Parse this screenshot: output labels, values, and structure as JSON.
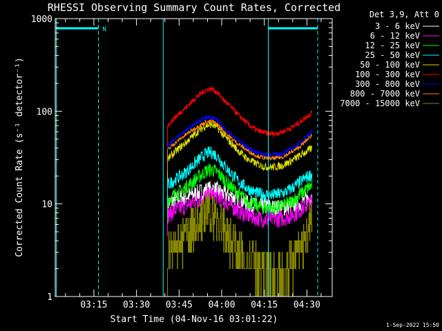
{
  "chart_data": {
    "type": "line",
    "title": "RHESSI Observing Summary Count Rates, Corrected",
    "xlabel": "Start Time (04-Nov-16 03:01:22)",
    "ylabel": "Corrected Count Rate (s⁻¹ detector⁻¹)",
    "y_scale": "log",
    "ylim": [
      1,
      1000
    ],
    "x_unit": "minutes since 03:01:22",
    "xlim": [
      0,
      97.5
    ],
    "x_ticks": [
      {
        "label": "03:15",
        "value": 13.6
      },
      {
        "label": "03:30",
        "value": 28.6
      },
      {
        "label": "03:45",
        "value": 43.6
      },
      {
        "label": "04:00",
        "value": 58.6
      },
      {
        "label": "04:15",
        "value": 73.6
      },
      {
        "label": "04:30",
        "value": 88.6
      }
    ],
    "y_ticks": [
      {
        "label": "1",
        "value": 1
      },
      {
        "label": "10",
        "value": 10
      },
      {
        "label": "100",
        "value": 100
      },
      {
        "label": "1000",
        "value": 1000
      }
    ],
    "legend": {
      "header": "Det 3,9, Att 0",
      "placement": "outside-right"
    },
    "series": [
      {
        "name": "3 - 6 keV",
        "color": "#ffffff",
        "x": [
          39.5,
          42,
          46,
          50,
          53,
          55,
          57,
          59,
          62,
          65,
          68,
          71,
          74,
          77,
          80,
          83,
          86,
          88,
          90.5
        ],
        "y": [
          10,
          11,
          12,
          13,
          14,
          14.5,
          14,
          13,
          12,
          11,
          10,
          9.5,
          9.5,
          9,
          9,
          9.5,
          10,
          11,
          12
        ]
      },
      {
        "name": "6 - 12 keV",
        "color": "#ff00ff",
        "x": [
          39.5,
          42,
          46,
          50,
          53,
          55,
          57,
          59,
          62,
          65,
          68,
          71,
          74,
          77,
          80,
          83,
          86,
          88,
          90.5
        ],
        "y": [
          7.5,
          8.5,
          9.5,
          11,
          12,
          12.5,
          12,
          11,
          9.5,
          8.3,
          7.5,
          7,
          6.8,
          6.8,
          7,
          7.5,
          8.5,
          9.5,
          10.5
        ]
      },
      {
        "name": "12 - 25 keV",
        "color": "#00ff00",
        "x": [
          39.5,
          42,
          46,
          50,
          53,
          55,
          57,
          59,
          62,
          65,
          68,
          71,
          74,
          77,
          80,
          83,
          86,
          88,
          90.5
        ],
        "y": [
          11,
          12.5,
          15,
          19,
          22.5,
          23.5,
          22,
          19,
          15,
          12.5,
          10.5,
          9.5,
          9,
          9,
          9.5,
          10.5,
          12.5,
          14,
          16
        ]
      },
      {
        "name": "25 - 50 keV",
        "color": "#00ffff",
        "x": [
          39.5,
          42,
          46,
          50,
          53,
          55,
          57,
          59,
          62,
          65,
          68,
          71,
          74,
          77,
          80,
          83,
          86,
          88,
          90.5
        ],
        "y": [
          16,
          18,
          22,
          29,
          35,
          36,
          33,
          27,
          21,
          17,
          14.5,
          13,
          12.5,
          12.5,
          13,
          14.5,
          17,
          19,
          21
        ]
      },
      {
        "name": "50 - 100 keV",
        "color": "#dddd00",
        "x": [
          39.5,
          42,
          46,
          50,
          53,
          55,
          57,
          59,
          62,
          65,
          68,
          71,
          74,
          77,
          80,
          83,
          86,
          88,
          90.5
        ],
        "y": [
          30,
          36,
          46,
          60,
          70,
          72,
          67,
          56,
          45,
          36,
          30,
          27,
          25,
          25,
          26,
          29,
          33,
          36,
          40
        ]
      },
      {
        "name": "100 - 300 keV",
        "color": "#ff0000",
        "x": [
          39.5,
          42,
          46,
          50,
          53,
          55,
          57,
          59,
          62,
          65,
          68,
          71,
          74,
          77,
          80,
          83,
          86,
          88,
          90.5
        ],
        "y": [
          70,
          85,
          110,
          145,
          170,
          175,
          160,
          135,
          110,
          88,
          72,
          62,
          58,
          57,
          60,
          66,
          76,
          85,
          98
        ]
      },
      {
        "name": "300 - 800 keV",
        "color": "#0000ff",
        "x": [
          39.5,
          42,
          46,
          50,
          53,
          55,
          57,
          59,
          62,
          65,
          68,
          71,
          74,
          77,
          80,
          83,
          86,
          88,
          90.5
        ],
        "y": [
          42,
          50,
          62,
          76,
          85,
          87,
          81,
          68,
          56,
          47,
          40,
          36,
          34,
          34,
          35,
          39,
          45,
          52,
          62
        ]
      },
      {
        "name": "800 - 7000 keV",
        "color": "#ff8800",
        "x": [
          39.5,
          42,
          46,
          50,
          53,
          55,
          57,
          59,
          62,
          65,
          68,
          71,
          74,
          77,
          80,
          83,
          86,
          88,
          90.5
        ],
        "y": [
          38,
          45,
          56,
          68,
          76,
          78,
          73,
          62,
          51,
          43,
          37,
          33,
          31,
          31,
          32,
          36,
          41,
          47,
          56
        ]
      },
      {
        "name": "7000 - 15000 keV",
        "color": "#888800",
        "x": [
          39.5,
          42,
          46,
          50,
          53,
          55,
          57,
          59,
          62,
          65,
          68,
          71,
          74,
          77,
          80,
          83,
          86,
          88,
          90.5
        ],
        "y": [
          2.5,
          3.2,
          4.5,
          6,
          7.5,
          7.8,
          7,
          5.5,
          4,
          3,
          2.4,
          2,
          1.8,
          1.7,
          1.8,
          2.2,
          3,
          4,
          6
        ]
      }
    ],
    "annotations": {
      "flag_label": "N",
      "timestamp": "1-Sep-2022 15:50"
    }
  }
}
